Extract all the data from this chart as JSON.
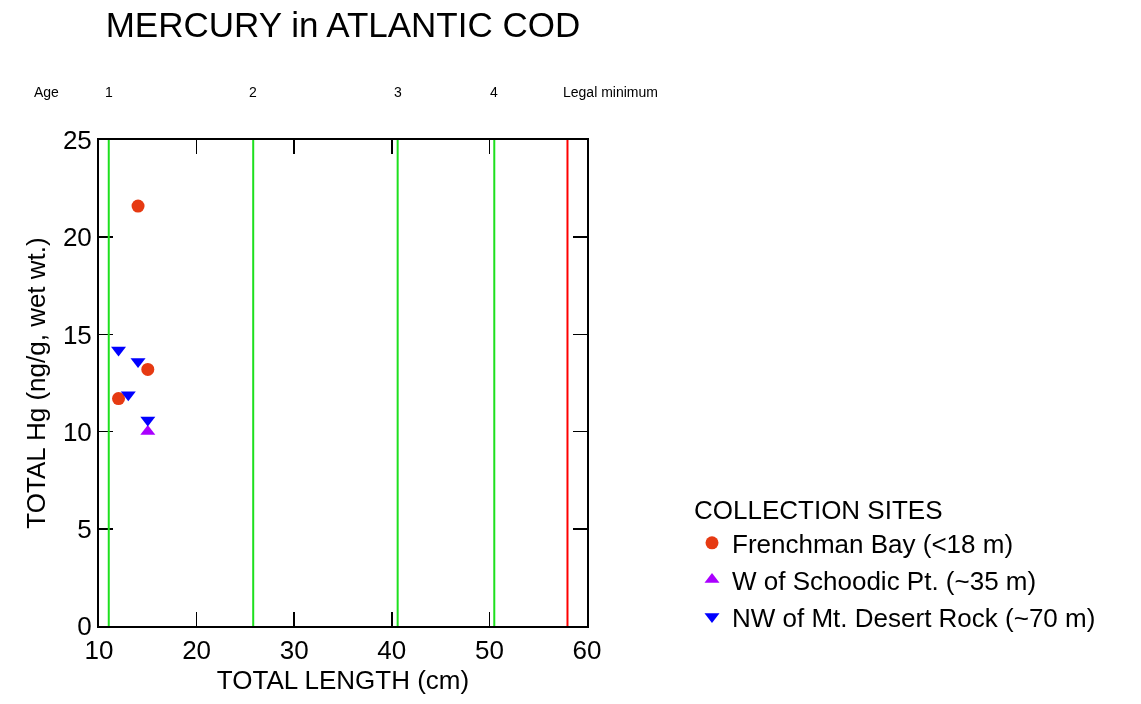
{
  "chart_data": {
    "type": "scatter",
    "title": "MERCURY in ATLANTIC COD",
    "xlabel": "TOTAL LENGTH (cm)",
    "ylabel": "TOTAL Hg (ng/g, wet wt.)",
    "legend_title": "COLLECTION SITES",
    "annotations": [
      "Age",
      "1",
      "2",
      "3",
      "4"
    ],
    "series": [
      {
        "name": "Frenchman Bay (<18 m)",
        "color": "#e63a12",
        "marker": "circle",
        "x": [
          12,
          14,
          15
        ],
        "values": [
          11.7,
          21.6,
          13.2
        ]
      },
      {
        "name": "W of Schoodic Pt. (~35 m)",
        "color": "#aa00ff",
        "marker": "triangle",
        "x": [
          15
        ],
        "values": [
          10.0
        ]
      },
      {
        "name": "NW of Mt. Desert Rock (~70 m)",
        "color": "#0000ff",
        "marker": "triangle-down",
        "x": [
          12,
          13,
          14,
          15
        ],
        "values": [
          14.2,
          11.9,
          13.6,
          10.6
        ]
      }
    ],
    "ref_lines": [
      {
        "axis": "x",
        "value": 11,
        "color": "#1ee01e"
      },
      {
        "axis": "x",
        "value": 25.8,
        "color": "#1ee01e"
      },
      {
        "axis": "x",
        "value": 40.6,
        "color": "#1ee01e"
      },
      {
        "axis": "x",
        "value": 50.5,
        "color": "#1ee01e"
      },
      {
        "axis": "x",
        "value": 58,
        "label": "Legal minimum",
        "color": "#ff0000"
      }
    ],
    "xlim": [
      10,
      60
    ],
    "xticks": [
      10,
      20,
      30,
      40,
      50,
      60
    ],
    "ylim": [
      0,
      25
    ],
    "yticks": [
      0,
      5,
      10,
      15,
      20,
      25
    ],
    "legend": "bottom right"
  }
}
